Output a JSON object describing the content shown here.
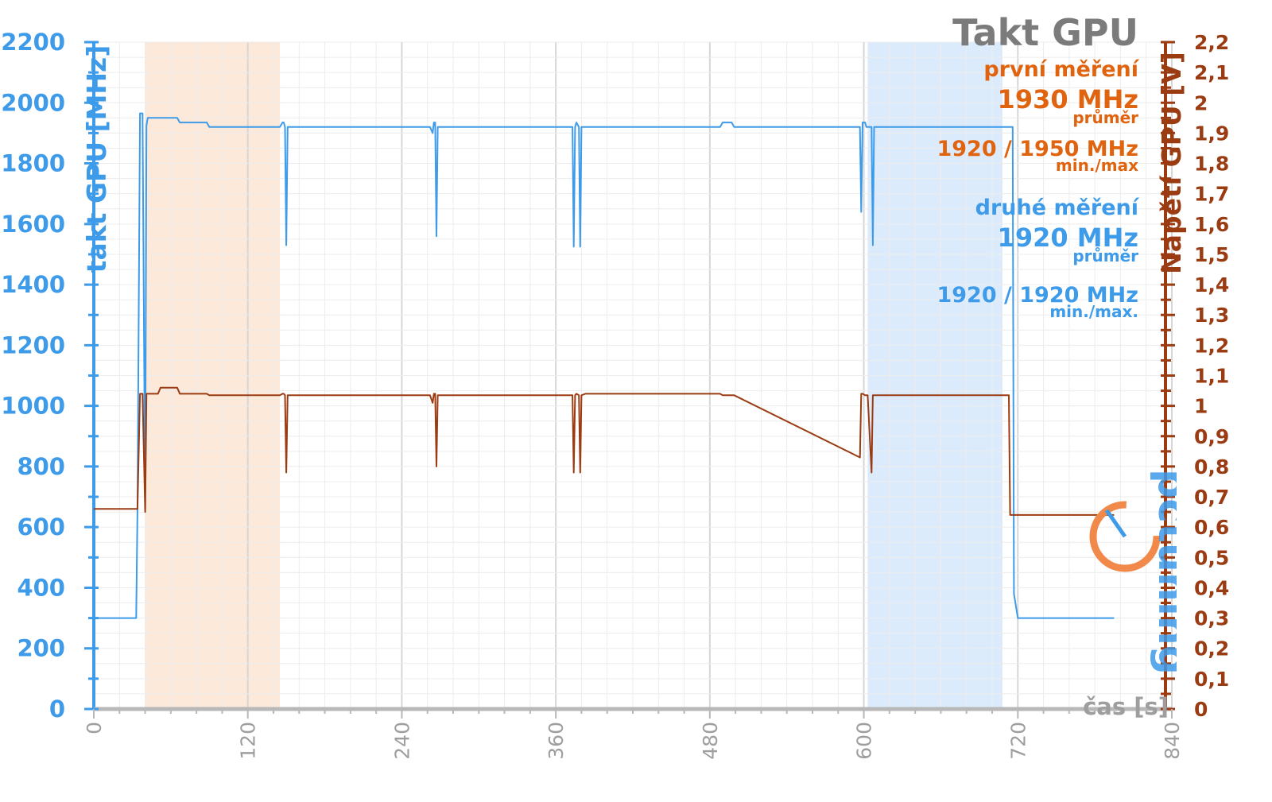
{
  "chart_data": {
    "type": "line",
    "title": "Takt GPU",
    "xlabel": "čas [s]",
    "ylabel_left": "takt GPU [MHz]",
    "ylabel_right": "Napětí GPU [V]",
    "x_ticks": [
      "0",
      "120",
      "240",
      "360",
      "480",
      "600",
      "720",
      "840"
    ],
    "xlim": [
      0,
      840
    ],
    "y_left_ticks": [
      "0",
      "200",
      "400",
      "600",
      "800",
      "1000",
      "1200",
      "1400",
      "1600",
      "1800",
      "2000",
      "2200"
    ],
    "ylim_left": [
      0,
      2200
    ],
    "y_right_ticks": [
      "0",
      "0,1",
      "0,2",
      "0,3",
      "0,4",
      "0,5",
      "0,6",
      "0,7",
      "0,8",
      "0,9",
      "1",
      "1,1",
      "1,2",
      "1,3",
      "1,4",
      "1,5",
      "1,6",
      "1,7",
      "1,8",
      "1,9",
      "2",
      "2,1",
      "2,2"
    ],
    "ylim_right": [
      0,
      2.2
    ],
    "grid": true,
    "highlight_ranges": [
      {
        "x0": 40,
        "x1": 145,
        "color": "#fce9d9"
      },
      {
        "x0": 603,
        "x1": 708,
        "color": "#dcebfc"
      }
    ],
    "series": [
      {
        "axis": "left",
        "color": "#3d9be9",
        "x": [
          0,
          33,
          34,
          36,
          38,
          40,
          41,
          42,
          43,
          65,
          67,
          88,
          90,
          145,
          147,
          148,
          149,
          150,
          151,
          152,
          262,
          264,
          265,
          266,
          267,
          268,
          270,
          372,
          373,
          374,
          375,
          376,
          378,
          379,
          380,
          383,
          389,
          390,
          391,
          392,
          393,
          394,
          395,
          488,
          490,
          497,
          499,
          597,
          598,
          599,
          601,
          602,
          603,
          606,
          607,
          608,
          610,
          713,
          714,
          715,
          716,
          717,
          720,
          795
        ],
        "y": [
          300,
          300,
          650,
          1965,
          1965,
          660,
          1925,
          1950,
          1950,
          1950,
          1935,
          1935,
          1920,
          1920,
          1935,
          1935,
          1920,
          1530,
          1920,
          1920,
          1920,
          1900,
          1935,
          1935,
          1560,
          1920,
          1920,
          1920,
          1920,
          1525,
          1920,
          1935,
          1920,
          1525,
          1920,
          1920,
          1920,
          1920,
          1920,
          1920,
          1920,
          1920,
          1920,
          1920,
          1935,
          1935,
          1920,
          1920,
          1640,
          1935,
          1935,
          1920,
          1920,
          1920,
          1530,
          1920,
          1920,
          1920,
          1920,
          1920,
          1920,
          380,
          300,
          300
        ]
      },
      {
        "axis": "right",
        "color": "#9b3b12",
        "x": [
          0,
          33,
          34,
          36,
          38,
          40,
          41,
          42,
          43,
          50,
          52,
          65,
          67,
          88,
          90,
          145,
          147,
          148,
          149,
          150,
          151,
          152,
          262,
          264,
          265,
          266,
          267,
          268,
          270,
          372,
          373,
          374,
          375,
          376,
          378,
          379,
          380,
          383,
          488,
          490,
          497,
          499,
          597,
          598,
          599,
          601,
          602,
          603,
          606,
          607,
          608,
          610,
          713,
          714,
          716,
          795
        ],
        "y": [
          0.66,
          0.66,
          0.66,
          1.04,
          1.04,
          0.65,
          1.04,
          1.04,
          1.04,
          1.04,
          1.06,
          1.06,
          1.04,
          1.04,
          1.035,
          1.035,
          1.04,
          1.04,
          1.035,
          0.78,
          1.035,
          1.035,
          1.035,
          1.01,
          1.04,
          1.04,
          0.8,
          1.035,
          1.035,
          1.035,
          1.035,
          0.78,
          1.035,
          1.04,
          1.035,
          0.78,
          1.035,
          1.04,
          1.04,
          1.035,
          1.035,
          1.035,
          0.83,
          1.04,
          1.04,
          1.035,
          1.035,
          1.035,
          0.78,
          1.035,
          1.035,
          1.035,
          1.035,
          0.64,
          0.64,
          0.64
        ]
      }
    ]
  },
  "legend": {
    "title": "Takt GPU",
    "run1_label": "první měření",
    "run1_avg": "1930 MHz",
    "run1_avg_label": "průměr",
    "run1_minmax": "1920 / 1950 MHz",
    "run1_minmax_label": "min./max",
    "run2_label": "druhé měření",
    "run2_avg": "1920 MHz",
    "run2_avg_label": "průměr",
    "run2_minmax": "1920 / 1920 MHz",
    "run2_minmax_label": "min./max."
  },
  "logo": {
    "text": "pctuning"
  },
  "colors": {
    "left_axis": "#3d9be9",
    "right_axis": "#9b3b12",
    "first_run": "#e0640f",
    "title": "#7b7b7b"
  }
}
